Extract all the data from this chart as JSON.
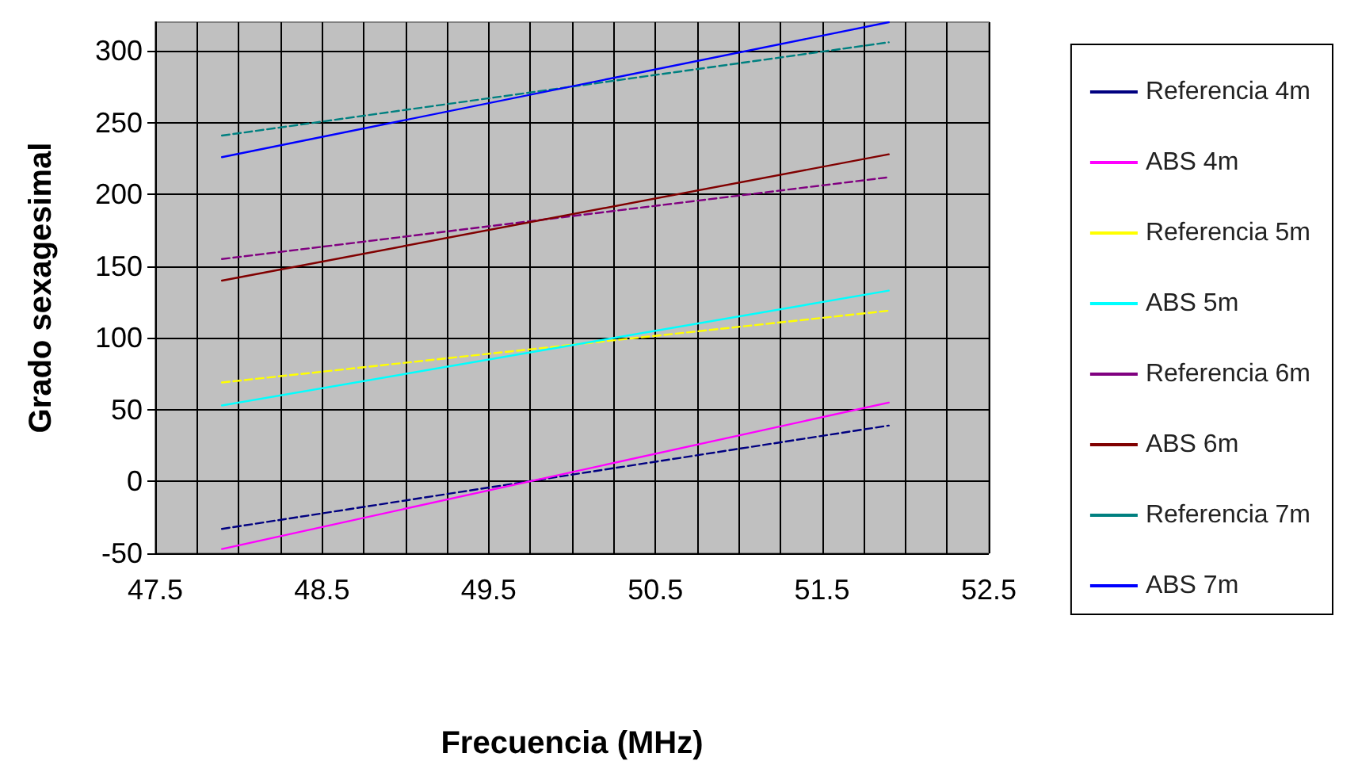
{
  "chart_data": {
    "type": "line",
    "xlabel": "Frecuencia (MHz)",
    "ylabel": "Grado sexagesimal",
    "xlim": [
      47.5,
      52.5
    ],
    "xticks": [
      47.5,
      {
        "value": 47.75,
        "label": null
      },
      {
        "value": 48.0,
        "label": null
      },
      {
        "value": 48.25,
        "label": null
      },
      48.5,
      {
        "value": 48.75,
        "label": null
      },
      {
        "value": 49.0,
        "label": null
      },
      {
        "value": 49.25,
        "label": null
      },
      49.5,
      {
        "value": 49.75,
        "label": null
      },
      {
        "value": 50.0,
        "label": null
      },
      {
        "value": 50.25,
        "label": null
      },
      50.5,
      {
        "value": 50.75,
        "label": null
      },
      {
        "value": 51.0,
        "label": null
      },
      {
        "value": 51.25,
        "label": null
      },
      51.5,
      {
        "value": 51.75,
        "label": null
      },
      {
        "value": 52.0,
        "label": null
      },
      {
        "value": 52.25,
        "label": null
      },
      52.5
    ],
    "ylim": [
      -50,
      320
    ],
    "yticks": [
      -50,
      0,
      50,
      100,
      150,
      200,
      250,
      300
    ],
    "grid": true,
    "legend": "right",
    "marker": "none",
    "x": [
      47.9,
      51.9
    ],
    "series": [
      {
        "name": "Referencia 4m",
        "color": "#000080",
        "line_style": "dashed",
        "values": [
          -33,
          39
        ]
      },
      {
        "name": "ABS 4m",
        "color": "#ff00ff",
        "line_style": "solid",
        "values": [
          -47,
          55
        ]
      },
      {
        "name": "Referencia 5m",
        "color": "#ffff00",
        "line_style": "dashed",
        "values": [
          69,
          119
        ]
      },
      {
        "name": "ABS 5m",
        "color": "#00ffff",
        "line_style": "solid",
        "values": [
          53,
          133
        ]
      },
      {
        "name": "Referencia 6m",
        "color": "#800080",
        "line_style": "dashed",
        "values": [
          155,
          212
        ]
      },
      {
        "name": "ABS 6m",
        "color": "#800000",
        "line_style": "solid",
        "values": [
          140,
          228
        ]
      },
      {
        "name": "Referencia 7m",
        "color": "#008080",
        "line_style": "dashed",
        "values": [
          241,
          306
        ]
      },
      {
        "name": "ABS 7m",
        "color": "#0000ff",
        "line_style": "solid",
        "values": [
          226,
          320
        ]
      }
    ]
  }
}
